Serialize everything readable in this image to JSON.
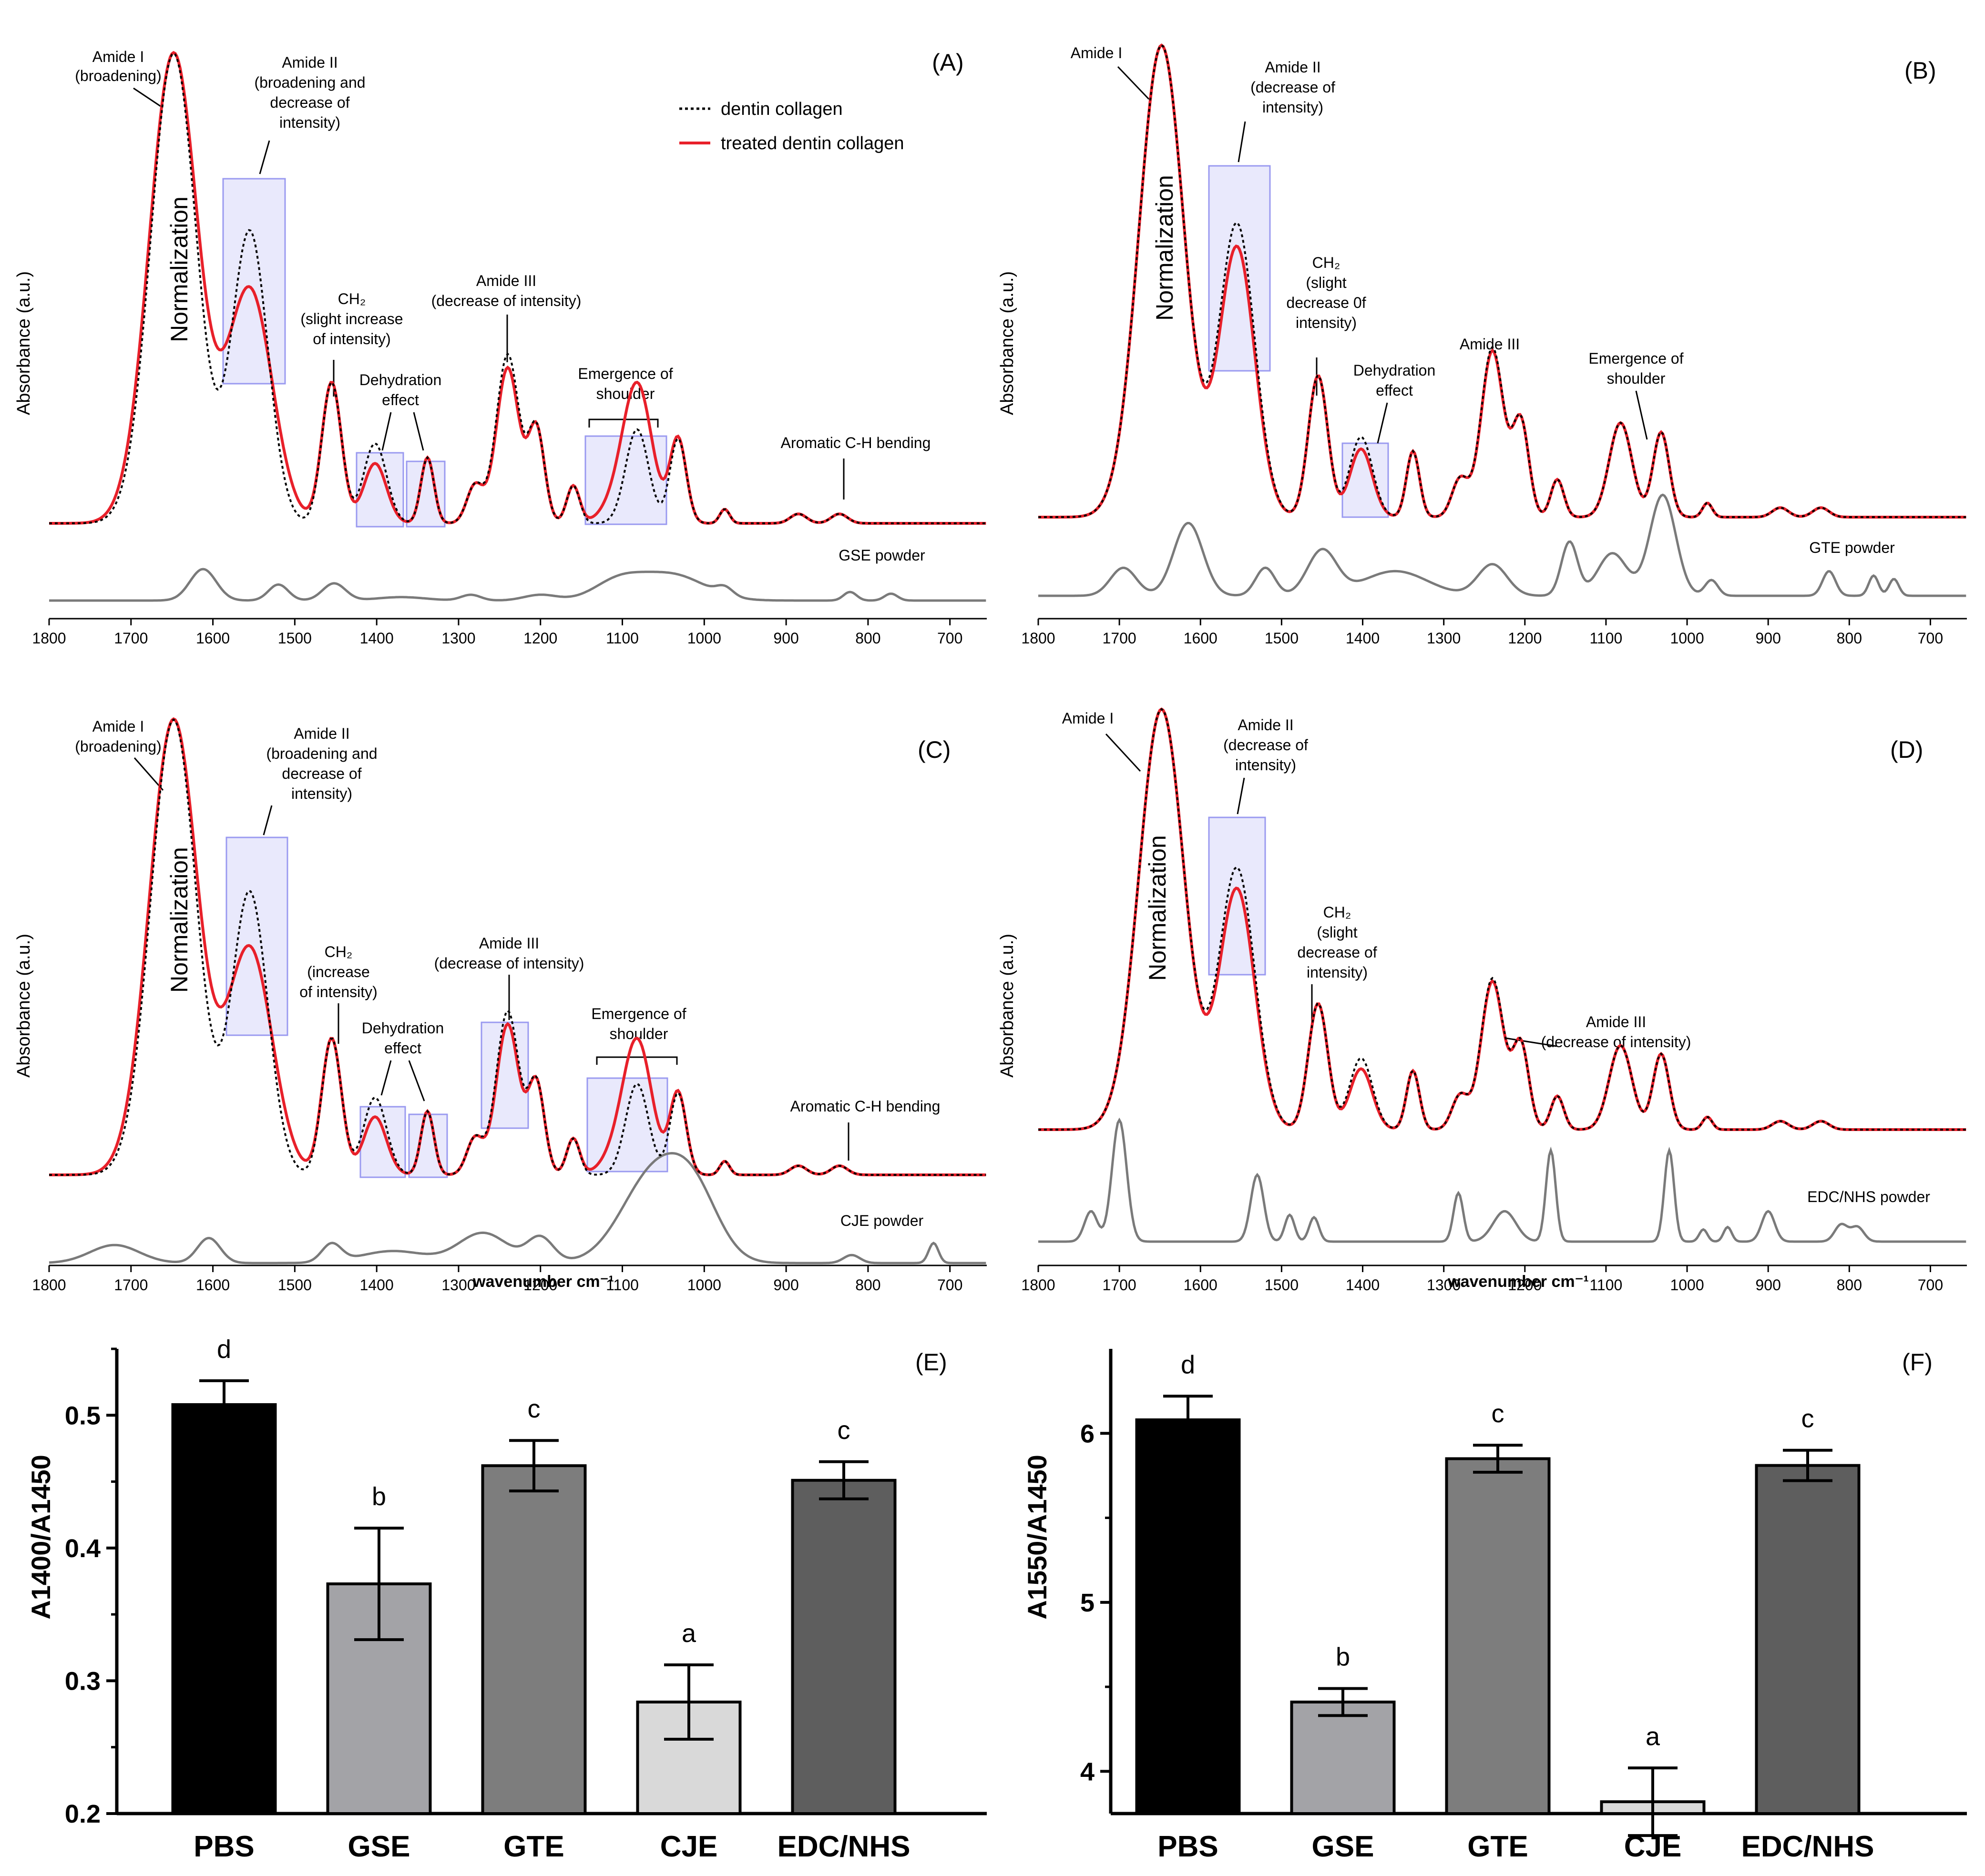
{
  "legend": {
    "dentin": "dentin collagen",
    "treated": "treated dentin collagen"
  },
  "common": {
    "ylabel": "Absorbance (a.u.)",
    "xlabel": "wavenumber cm⁻¹",
    "normalization": "Normalization",
    "xticks": [
      "1800",
      "1700",
      "1600",
      "1500",
      "1400",
      "1300",
      "1200",
      "1100",
      "1000",
      "900",
      "800",
      "700"
    ]
  },
  "panels": {
    "A": {
      "label": "(A)",
      "powder": "GSE powder",
      "ann": {
        "amide1": [
          "Amide I",
          "(broadening)"
        ],
        "amide2": [
          "Amide II",
          "(broadening and",
          "decrease of",
          "intensity)"
        ],
        "ch2": [
          "CH₂",
          "(slight increase",
          "of intensity)"
        ],
        "dehyd": [
          "Dehydration",
          "effect"
        ],
        "amide3": [
          "Amide III",
          "(decrease of intensity)"
        ],
        "shoulder": [
          "Emergence of",
          "shoulder"
        ],
        "aromatic": [
          "Aromatic C-H bending"
        ]
      }
    },
    "B": {
      "label": "(B)",
      "powder": "GTE powder",
      "ann": {
        "amide1": [
          "Amide I"
        ],
        "amide2": [
          "Amide II",
          "(decrease of",
          "intensity)"
        ],
        "ch2": [
          "CH₂",
          "(slight",
          "decrease 0f",
          "intensity)"
        ],
        "dehyd": [
          "Dehydration",
          "effect"
        ],
        "amide3": [
          "Amide III"
        ],
        "shoulder": [
          "Emergence of",
          "shoulder"
        ]
      }
    },
    "C": {
      "label": "(C)",
      "powder": "CJE powder",
      "ann": {
        "amide1": [
          "Amide I",
          "(broadening)"
        ],
        "amide2": [
          "Amide II",
          "(broadening and",
          "decrease of",
          "intensity)"
        ],
        "ch2": [
          "CH₂",
          "(increase",
          "of intensity)"
        ],
        "dehyd": [
          "Dehydration",
          "effect"
        ],
        "amide3": [
          "Amide III",
          "(decrease of intensity)"
        ],
        "shoulder": [
          "Emergence of",
          "shoulder"
        ],
        "aromatic": [
          "Aromatic C-H bending"
        ]
      }
    },
    "D": {
      "label": "(D)",
      "powder": "EDC/NHS powder",
      "ann": {
        "amide1": [
          "Amide I"
        ],
        "amide2": [
          "Amide II",
          "(decrease of",
          "intensity)"
        ],
        "ch2": [
          "CH₂",
          "(slight",
          "decrease of",
          "intensity)"
        ],
        "amide3": [
          "Amide III",
          "(decrease of intensity)"
        ]
      }
    }
  },
  "chart_data": [
    {
      "id": "E",
      "type": "bar",
      "label": "(E)",
      "ylabel": "A1400/A1450",
      "categories": [
        "PBS",
        "GSE",
        "GTE",
        "CJE",
        "EDC/NHS"
      ],
      "values": [
        0.508,
        0.373,
        0.462,
        0.284,
        0.451
      ],
      "errors": [
        0.018,
        0.042,
        0.019,
        0.028,
        0.014
      ],
      "letters": [
        "d",
        "b",
        "c",
        "a",
        "c"
      ],
      "colors": [
        "#000000",
        "#a3a3a7",
        "#7d7d7d",
        "#d9d9d9",
        "#5e5e5e"
      ],
      "ylim": [
        0.2,
        0.55
      ],
      "yticks": [
        "0.2",
        "0.3",
        "0.4",
        "0.5"
      ]
    },
    {
      "id": "F",
      "type": "bar",
      "label": "(F)",
      "ylabel": "A1550/A1450",
      "categories": [
        "PBS",
        "GSE",
        "GTE",
        "CJE",
        "EDC/NHS"
      ],
      "values": [
        6.08,
        4.41,
        5.85,
        3.82,
        5.81
      ],
      "errors": [
        0.14,
        0.08,
        0.08,
        0.2,
        0.09
      ],
      "letters": [
        "d",
        "b",
        "c",
        "a",
        "c"
      ],
      "colors": [
        "#000000",
        "#a3a3a7",
        "#7d7d7d",
        "#d9d9d9",
        "#5e5e5e"
      ],
      "ylim": [
        3.75,
        6.5
      ],
      "yticks": [
        "4",
        "5",
        "6"
      ]
    }
  ]
}
